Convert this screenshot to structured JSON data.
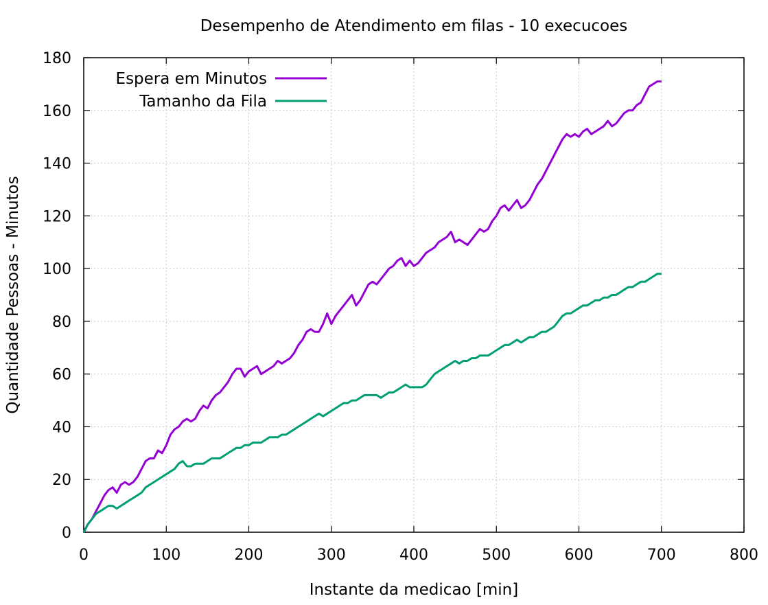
{
  "chart_data": {
    "type": "line",
    "title": "Desempenho de Atendimento em filas - 10 execucoes",
    "xlabel": "Instante da medicao [min]",
    "ylabel": "Quantidade Pessoas - Minutos",
    "xlim": [
      0,
      800
    ],
    "ylim": [
      0,
      180
    ],
    "xticks": [
      0,
      100,
      200,
      300,
      400,
      500,
      600,
      700,
      800
    ],
    "yticks": [
      0,
      20,
      40,
      60,
      80,
      100,
      120,
      140,
      160,
      180
    ],
    "x_tick_labels": [
      "0",
      "100",
      "200",
      "300",
      "400",
      "500",
      "600",
      "700",
      "800"
    ],
    "y_tick_labels": [
      "0",
      "20",
      "40",
      "60",
      "80",
      "100",
      "120",
      "140",
      "160",
      "180"
    ],
    "grid": true,
    "legend_position": "top-left",
    "series": [
      {
        "name": "Espera em Minutos",
        "color": "#9400d3",
        "points": [
          [
            0,
            0
          ],
          [
            5,
            3
          ],
          [
            10,
            5
          ],
          [
            15,
            8
          ],
          [
            20,
            11
          ],
          [
            25,
            14
          ],
          [
            30,
            16
          ],
          [
            35,
            17
          ],
          [
            40,
            15
          ],
          [
            45,
            18
          ],
          [
            50,
            19
          ],
          [
            55,
            18
          ],
          [
            60,
            19
          ],
          [
            65,
            21
          ],
          [
            70,
            24
          ],
          [
            75,
            27
          ],
          [
            80,
            28
          ],
          [
            85,
            28
          ],
          [
            90,
            31
          ],
          [
            95,
            30
          ],
          [
            100,
            33
          ],
          [
            105,
            37
          ],
          [
            110,
            39
          ],
          [
            115,
            40
          ],
          [
            120,
            42
          ],
          [
            125,
            43
          ],
          [
            130,
            42
          ],
          [
            135,
            43
          ],
          [
            140,
            46
          ],
          [
            145,
            48
          ],
          [
            150,
            47
          ],
          [
            155,
            50
          ],
          [
            160,
            52
          ],
          [
            165,
            53
          ],
          [
            170,
            55
          ],
          [
            175,
            57
          ],
          [
            180,
            60
          ],
          [
            185,
            62
          ],
          [
            190,
            62
          ],
          [
            195,
            59
          ],
          [
            200,
            61
          ],
          [
            205,
            62
          ],
          [
            210,
            63
          ],
          [
            215,
            60
          ],
          [
            220,
            61
          ],
          [
            225,
            62
          ],
          [
            230,
            63
          ],
          [
            235,
            65
          ],
          [
            240,
            64
          ],
          [
            245,
            65
          ],
          [
            250,
            66
          ],
          [
            255,
            68
          ],
          [
            260,
            71
          ],
          [
            265,
            73
          ],
          [
            270,
            76
          ],
          [
            275,
            77
          ],
          [
            280,
            76
          ],
          [
            285,
            76
          ],
          [
            290,
            79
          ],
          [
            295,
            83
          ],
          [
            300,
            79
          ],
          [
            305,
            82
          ],
          [
            310,
            84
          ],
          [
            315,
            86
          ],
          [
            320,
            88
          ],
          [
            325,
            90
          ],
          [
            330,
            86
          ],
          [
            335,
            88
          ],
          [
            340,
            91
          ],
          [
            345,
            94
          ],
          [
            350,
            95
          ],
          [
            355,
            94
          ],
          [
            360,
            96
          ],
          [
            365,
            98
          ],
          [
            370,
            100
          ],
          [
            375,
            101
          ],
          [
            380,
            103
          ],
          [
            385,
            104
          ],
          [
            390,
            101
          ],
          [
            395,
            103
          ],
          [
            400,
            101
          ],
          [
            405,
            102
          ],
          [
            410,
            104
          ],
          [
            415,
            106
          ],
          [
            420,
            107
          ],
          [
            425,
            108
          ],
          [
            430,
            110
          ],
          [
            435,
            111
          ],
          [
            440,
            112
          ],
          [
            445,
            114
          ],
          [
            450,
            110
          ],
          [
            455,
            111
          ],
          [
            460,
            110
          ],
          [
            465,
            109
          ],
          [
            470,
            111
          ],
          [
            475,
            113
          ],
          [
            480,
            115
          ],
          [
            485,
            114
          ],
          [
            490,
            115
          ],
          [
            495,
            118
          ],
          [
            500,
            120
          ],
          [
            505,
            123
          ],
          [
            510,
            124
          ],
          [
            515,
            122
          ],
          [
            520,
            124
          ],
          [
            525,
            126
          ],
          [
            530,
            123
          ],
          [
            535,
            124
          ],
          [
            540,
            126
          ],
          [
            545,
            129
          ],
          [
            550,
            132
          ],
          [
            555,
            134
          ],
          [
            560,
            137
          ],
          [
            565,
            140
          ],
          [
            570,
            143
          ],
          [
            575,
            146
          ],
          [
            580,
            149
          ],
          [
            585,
            151
          ],
          [
            590,
            150
          ],
          [
            595,
            151
          ],
          [
            600,
            150
          ],
          [
            605,
            152
          ],
          [
            610,
            153
          ],
          [
            615,
            151
          ],
          [
            620,
            152
          ],
          [
            625,
            153
          ],
          [
            630,
            154
          ],
          [
            635,
            156
          ],
          [
            640,
            154
          ],
          [
            645,
            155
          ],
          [
            650,
            157
          ],
          [
            655,
            159
          ],
          [
            660,
            160
          ],
          [
            665,
            160
          ],
          [
            670,
            162
          ],
          [
            675,
            163
          ],
          [
            680,
            166
          ],
          [
            685,
            169
          ],
          [
            690,
            170
          ],
          [
            695,
            171
          ],
          [
            700,
            171
          ]
        ]
      },
      {
        "name": "Tamanho da Fila",
        "color": "#009e73",
        "points": [
          [
            0,
            0
          ],
          [
            5,
            3
          ],
          [
            10,
            5
          ],
          [
            15,
            7
          ],
          [
            20,
            8
          ],
          [
            25,
            9
          ],
          [
            30,
            10
          ],
          [
            35,
            10
          ],
          [
            40,
            9
          ],
          [
            45,
            10
          ],
          [
            50,
            11
          ],
          [
            55,
            12
          ],
          [
            60,
            13
          ],
          [
            65,
            14
          ],
          [
            70,
            15
          ],
          [
            75,
            17
          ],
          [
            80,
            18
          ],
          [
            85,
            19
          ],
          [
            90,
            20
          ],
          [
            95,
            21
          ],
          [
            100,
            22
          ],
          [
            105,
            23
          ],
          [
            110,
            24
          ],
          [
            115,
            26
          ],
          [
            120,
            27
          ],
          [
            125,
            25
          ],
          [
            130,
            25
          ],
          [
            135,
            26
          ],
          [
            140,
            26
          ],
          [
            145,
            26
          ],
          [
            150,
            27
          ],
          [
            155,
            28
          ],
          [
            160,
            28
          ],
          [
            165,
            28
          ],
          [
            170,
            29
          ],
          [
            175,
            30
          ],
          [
            180,
            31
          ],
          [
            185,
            32
          ],
          [
            190,
            32
          ],
          [
            195,
            33
          ],
          [
            200,
            33
          ],
          [
            205,
            34
          ],
          [
            210,
            34
          ],
          [
            215,
            34
          ],
          [
            220,
            35
          ],
          [
            225,
            36
          ],
          [
            230,
            36
          ],
          [
            235,
            36
          ],
          [
            240,
            37
          ],
          [
            245,
            37
          ],
          [
            250,
            38
          ],
          [
            255,
            39
          ],
          [
            260,
            40
          ],
          [
            265,
            41
          ],
          [
            270,
            42
          ],
          [
            275,
            43
          ],
          [
            280,
            44
          ],
          [
            285,
            45
          ],
          [
            290,
            44
          ],
          [
            295,
            45
          ],
          [
            300,
            46
          ],
          [
            305,
            47
          ],
          [
            310,
            48
          ],
          [
            315,
            49
          ],
          [
            320,
            49
          ],
          [
            325,
            50
          ],
          [
            330,
            50
          ],
          [
            335,
            51
          ],
          [
            340,
            52
          ],
          [
            345,
            52
          ],
          [
            350,
            52
          ],
          [
            355,
            52
          ],
          [
            360,
            51
          ],
          [
            365,
            52
          ],
          [
            370,
            53
          ],
          [
            375,
            53
          ],
          [
            380,
            54
          ],
          [
            385,
            55
          ],
          [
            390,
            56
          ],
          [
            395,
            55
          ],
          [
            400,
            55
          ],
          [
            405,
            55
          ],
          [
            410,
            55
          ],
          [
            415,
            56
          ],
          [
            420,
            58
          ],
          [
            425,
            60
          ],
          [
            430,
            61
          ],
          [
            435,
            62
          ],
          [
            440,
            63
          ],
          [
            445,
            64
          ],
          [
            450,
            65
          ],
          [
            455,
            64
          ],
          [
            460,
            65
          ],
          [
            465,
            65
          ],
          [
            470,
            66
          ],
          [
            475,
            66
          ],
          [
            480,
            67
          ],
          [
            485,
            67
          ],
          [
            490,
            67
          ],
          [
            495,
            68
          ],
          [
            500,
            69
          ],
          [
            505,
            70
          ],
          [
            510,
            71
          ],
          [
            515,
            71
          ],
          [
            520,
            72
          ],
          [
            525,
            73
          ],
          [
            530,
            72
          ],
          [
            535,
            73
          ],
          [
            540,
            74
          ],
          [
            545,
            74
          ],
          [
            550,
            75
          ],
          [
            555,
            76
          ],
          [
            560,
            76
          ],
          [
            565,
            77
          ],
          [
            570,
            78
          ],
          [
            575,
            80
          ],
          [
            580,
            82
          ],
          [
            585,
            83
          ],
          [
            590,
            83
          ],
          [
            595,
            84
          ],
          [
            600,
            85
          ],
          [
            605,
            86
          ],
          [
            610,
            86
          ],
          [
            615,
            87
          ],
          [
            620,
            88
          ],
          [
            625,
            88
          ],
          [
            630,
            89
          ],
          [
            635,
            89
          ],
          [
            640,
            90
          ],
          [
            645,
            90
          ],
          [
            650,
            91
          ],
          [
            655,
            92
          ],
          [
            660,
            93
          ],
          [
            665,
            93
          ],
          [
            670,
            94
          ],
          [
            675,
            95
          ],
          [
            680,
            95
          ],
          [
            685,
            96
          ],
          [
            690,
            97
          ],
          [
            695,
            98
          ],
          [
            700,
            98
          ]
        ]
      }
    ]
  }
}
